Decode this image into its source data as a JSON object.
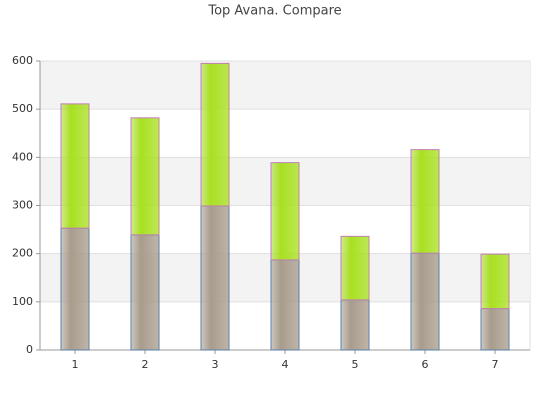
{
  "chart_data": {
    "type": "stacked-bar",
    "title": "Top Avana. Compare",
    "categories": [
      "1",
      "2",
      "3",
      "4",
      "5",
      "6",
      "7"
    ],
    "series": [
      {
        "color": "#a89c8c",
        "values": [
          253,
          239,
          299,
          187,
          104,
          201,
          86
        ]
      },
      {
        "color": "#a8e020",
        "values": [
          258,
          243,
          296,
          202,
          132,
          215,
          113
        ]
      }
    ],
    "ylim": [
      0,
      600
    ],
    "yticks": [
      0,
      100,
      200,
      300,
      400,
      500,
      600
    ],
    "grid": true
  }
}
